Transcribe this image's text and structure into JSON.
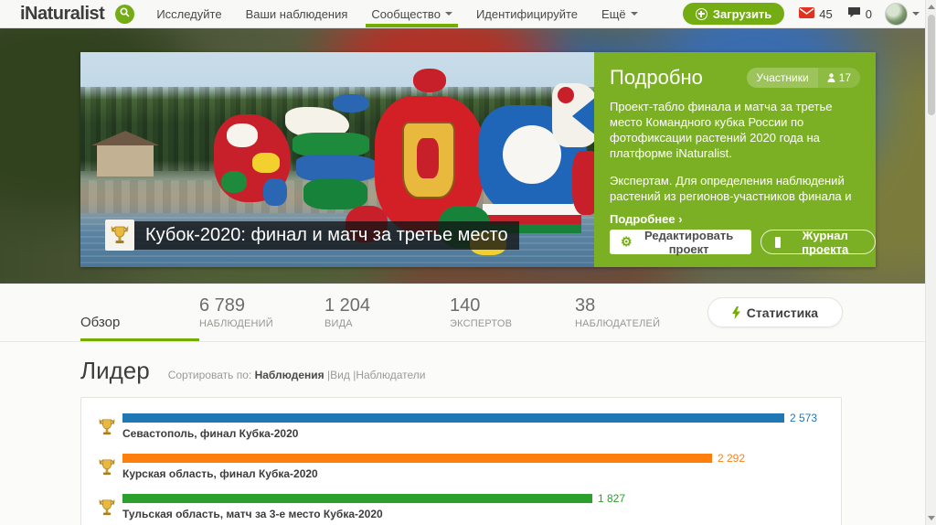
{
  "nav": {
    "logo": "iNaturalist",
    "items": [
      {
        "label": "Исследуйте"
      },
      {
        "label": "Ваши наблюдения"
      },
      {
        "label": "Сообщество"
      },
      {
        "label": "Идентифицируйте"
      },
      {
        "label": "Ещё"
      }
    ],
    "upload_label": "Загрузить",
    "messages_count": "45",
    "comments_count": "0"
  },
  "hero": {
    "title": "Кубок-2020: финал и матч за третье место",
    "about": {
      "heading": "Подробно",
      "members_label": "Участники",
      "members_count": "17",
      "paragraph1": "Проект-табло финала и матча за третье место Командного кубка России по фотофиксации растений 2020 года на платформе iNaturalist.",
      "paragraph2": "Экспертам. Для определения наблюдений растений из регионов-участников финала и",
      "more_link": "Подробнее ›",
      "edit_button": "Редактировать проект",
      "journal_button": "Журнал проекта"
    }
  },
  "stats": {
    "overview_tab": "Обзор",
    "items": [
      {
        "value": "6 789",
        "label": "НАБЛЮДЕНИЙ"
      },
      {
        "value": "1 204",
        "label": "ВИДА"
      },
      {
        "value": "140",
        "label": "ЭКСПЕРТОВ"
      },
      {
        "value": "38",
        "label": "НАБЛЮДАТЕЛЕЙ"
      }
    ],
    "stats_button": "Статистика"
  },
  "leaderboard": {
    "title": "Лидер",
    "sort_label": "Сортировать по:",
    "sort_active": "Наблюдения",
    "divider": "|",
    "sort_option_species": "Вид",
    "sort_option_observers": "Наблюдатели",
    "rows": [
      {
        "label": "Севастополь, финал Кубка-2020",
        "value": "2 573",
        "value_num": 2573,
        "color": "#1f77b4"
      },
      {
        "label": "Курская область, финал Кубка-2020",
        "value": "2 292",
        "value_num": 2292,
        "color": "#ff7f0e"
      },
      {
        "label": "Тульская область, матч за 3-е место Кубка-2020",
        "value": "1 827",
        "value_num": 1827,
        "color": "#2ca02c"
      }
    ]
  },
  "chart_data": {
    "type": "bar",
    "orientation": "horizontal",
    "categories": [
      "Севастополь, финал Кубка-2020",
      "Курская область, финал Кубка-2020",
      "Тульская область, матч за 3-е место Кубка-2020"
    ],
    "values": [
      2573,
      2292,
      1827
    ],
    "colors": [
      "#1f77b4",
      "#ff7f0e",
      "#2ca02c"
    ],
    "title": "Лидер",
    "xlabel": "",
    "ylabel": "",
    "xlim": [
      0,
      2573
    ]
  },
  "colors": {
    "brand_green": "#74ac00",
    "button_green": "#73ac13",
    "panel_green": "#7cb024",
    "envelope_red": "#e0321f"
  }
}
